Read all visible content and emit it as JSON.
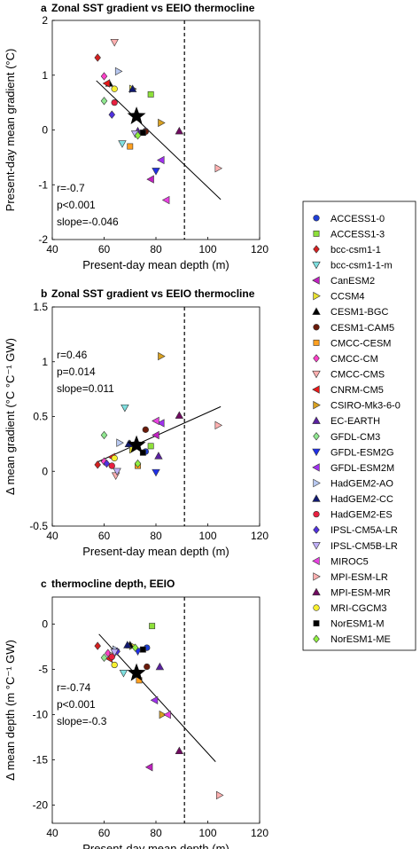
{
  "panels": [
    {
      "letter": "a",
      "title": "Zonal SST gradient vs EEIO thermocline"
    },
    {
      "letter": "b",
      "title": "Zonal SST gradient vs EEIO thermocline"
    },
    {
      "letter": "c",
      "title": "thermocline depth, EEIO"
    }
  ],
  "models": [
    {
      "name": "ACCESS1-0",
      "marker": "circle",
      "color": "#1f3fd6"
    },
    {
      "name": "ACCESS1-3",
      "marker": "square",
      "color": "#8ee03a"
    },
    {
      "name": "bcc-csm1-1",
      "marker": "diamond",
      "color": "#d42020"
    },
    {
      "name": "bcc-csm1-1-m",
      "marker": "tri-down",
      "color": "#7fe0e0"
    },
    {
      "name": "CanESM2",
      "marker": "tri-left",
      "color": "#c020c0"
    },
    {
      "name": "CCSM4",
      "marker": "tri-right",
      "color": "#e8e030"
    },
    {
      "name": "CESM1-BGC",
      "marker": "tri-up",
      "color": "#000000"
    },
    {
      "name": "CESM1-CAM5",
      "marker": "circle",
      "color": "#6a1a0a"
    },
    {
      "name": "CMCC-CESM",
      "marker": "square",
      "color": "#ffa020"
    },
    {
      "name": "CMCC-CM",
      "marker": "diamond",
      "color": "#ff40c8"
    },
    {
      "name": "CMCC-CMS",
      "marker": "tri-down",
      "color": "#ffb0b0"
    },
    {
      "name": "CNRM-CM5",
      "marker": "tri-left",
      "color": "#e81818"
    },
    {
      "name": "CSIRO-Mk3-6-0",
      "marker": "tri-right",
      "color": "#d8a020"
    },
    {
      "name": "EC-EARTH",
      "marker": "tri-up",
      "color": "#5a20a0"
    },
    {
      "name": "GFDL-CM3",
      "marker": "diamond",
      "color": "#90e890"
    },
    {
      "name": "GFDL-ESM2G",
      "marker": "tri-down",
      "color": "#2030e8"
    },
    {
      "name": "GFDL-ESM2M",
      "marker": "tri-left",
      "color": "#a030f0"
    },
    {
      "name": "HadGEM2-AO",
      "marker": "tri-right",
      "color": "#b8c8f0"
    },
    {
      "name": "HadGEM2-CC",
      "marker": "tri-up",
      "color": "#101870"
    },
    {
      "name": "HadGEM2-ES",
      "marker": "circle",
      "color": "#e82040"
    },
    {
      "name": "IPSL-CM5A-LR",
      "marker": "diamond",
      "color": "#5030e0"
    },
    {
      "name": "IPSL-CM5B-LR",
      "marker": "tri-down",
      "color": "#c0b0f8"
    },
    {
      "name": "MIROC5",
      "marker": "tri-left",
      "color": "#e840e0"
    },
    {
      "name": "MPI-ESM-LR",
      "marker": "tri-right",
      "color": "#ffb0b0"
    },
    {
      "name": "MPI-ESM-MR",
      "marker": "tri-up",
      "color": "#700a60"
    },
    {
      "name": "MRI-CGCM3",
      "marker": "circle",
      "color": "#f8f030"
    },
    {
      "name": "NorESM1-M",
      "marker": "square",
      "color": "#000000"
    },
    {
      "name": "NorESM1-ME",
      "marker": "diamond",
      "color": "#90f040"
    }
  ],
  "chart_data": [
    {
      "type": "scatter",
      "title": "Zonal SST gradient vs EEIO thermocline",
      "xlabel": "Present-day mean depth (m)",
      "ylabel": "Present-day mean gradient (°C)",
      "xlim": [
        40,
        120
      ],
      "ylim": [
        -2,
        2
      ],
      "xticks": [
        40,
        60,
        80,
        100,
        120
      ],
      "yticks": [
        -2,
        -1,
        0,
        1,
        2
      ],
      "ytick_labels": [
        "-2",
        "-1",
        "0",
        "1",
        "2"
      ],
      "vline_x": 91,
      "fit": {
        "x": [
          57,
          105
        ],
        "y": [
          0.9,
          -1.27
        ]
      },
      "mean": {
        "x": 72.5,
        "y": 0.25
      },
      "stats": [
        "r=-0.7",
        "p<0.001",
        "slope=-0.046"
      ],
      "points": [
        {
          "model": 0,
          "x": 76,
          "y": -0.02
        },
        {
          "model": 1,
          "x": 78,
          "y": 0.65
        },
        {
          "model": 2,
          "x": 57.5,
          "y": 1.32
        },
        {
          "model": 3,
          "x": 67,
          "y": -0.25
        },
        {
          "model": 4,
          "x": 78,
          "y": -0.9
        },
        {
          "model": 5,
          "x": 71,
          "y": 0.75
        },
        {
          "model": 6,
          "x": 62,
          "y": 0.85
        },
        {
          "model": 7,
          "x": 76,
          "y": -0.03
        },
        {
          "model": 8,
          "x": 70,
          "y": -0.3
        },
        {
          "model": 9,
          "x": 60,
          "y": 0.98
        },
        {
          "model": 10,
          "x": 64,
          "y": 1.6
        },
        {
          "model": 11,
          "x": 61,
          "y": 0.85
        },
        {
          "model": 12,
          "x": 82,
          "y": 0.13
        },
        {
          "model": 13,
          "x": 73,
          "y": -0.02
        },
        {
          "model": 14,
          "x": 60,
          "y": 0.53
        },
        {
          "model": 15,
          "x": 80,
          "y": -0.75
        },
        {
          "model": 16,
          "x": 82,
          "y": -0.55
        },
        {
          "model": 17,
          "x": 65.5,
          "y": 1.07
        },
        {
          "model": 18,
          "x": 71,
          "y": 0.75
        },
        {
          "model": 19,
          "x": 64,
          "y": 0.5
        },
        {
          "model": 20,
          "x": 63,
          "y": 0.28
        },
        {
          "model": 21,
          "x": 72,
          "y": -0.07
        },
        {
          "model": 22,
          "x": 84,
          "y": -1.28
        },
        {
          "model": 23,
          "x": 104,
          "y": -0.7
        },
        {
          "model": 24,
          "x": 89,
          "y": -0.02
        },
        {
          "model": 25,
          "x": 64,
          "y": 0.75
        },
        {
          "model": 26,
          "x": 75,
          "y": -0.05
        },
        {
          "model": 27,
          "x": 73,
          "y": -0.1
        }
      ]
    },
    {
      "type": "scatter",
      "title": "Zonal SST gradient vs EEIO thermocline",
      "xlabel": "Present-day mean depth (m)",
      "ylabel": "Δ mean gradient (°C °C⁻¹ GW)",
      "xlim": [
        40,
        120
      ],
      "ylim": [
        -0.5,
        1.5
      ],
      "xticks": [
        40,
        60,
        80,
        100,
        120
      ],
      "yticks": [
        -0.5,
        0,
        0.5,
        1,
        1.5
      ],
      "ytick_labels": [
        "-0.5",
        "0",
        "0.5",
        "1",
        "1.5"
      ],
      "vline_x": 91,
      "fit": {
        "x": [
          57,
          105
        ],
        "y": [
          0.08,
          0.59
        ]
      },
      "mean": {
        "x": 72.5,
        "y": 0.24
      },
      "stats": [
        "r=0.46",
        "p=0.014",
        "slope=0.011"
      ],
      "points": [
        {
          "model": 0,
          "x": 76,
          "y": 0.18
        },
        {
          "model": 1,
          "x": 78,
          "y": 0.23
        },
        {
          "model": 2,
          "x": 57.5,
          "y": 0.06
        },
        {
          "model": 3,
          "x": 68,
          "y": 0.58
        },
        {
          "model": 4,
          "x": 80,
          "y": 0.33
        },
        {
          "model": 5,
          "x": 71,
          "y": 0.2
        },
        {
          "model": 6,
          "x": 70,
          "y": 0.25
        },
        {
          "model": 7,
          "x": 76,
          "y": 0.38
        },
        {
          "model": 8,
          "x": 73,
          "y": 0.05
        },
        {
          "model": 9,
          "x": 60,
          "y": 0.09
        },
        {
          "model": 10,
          "x": 64.5,
          "y": -0.04
        },
        {
          "model": 11,
          "x": 63,
          "y": 0.13
        },
        {
          "model": 12,
          "x": 82,
          "y": 1.05
        },
        {
          "model": 13,
          "x": 81,
          "y": 0.14
        },
        {
          "model": 14,
          "x": 60,
          "y": 0.33
        },
        {
          "model": 15,
          "x": 80,
          "y": -0.01
        },
        {
          "model": 16,
          "x": 82,
          "y": 0.44
        },
        {
          "model": 17,
          "x": 66,
          "y": 0.26
        },
        {
          "model": 18,
          "x": 69.5,
          "y": 0.25
        },
        {
          "model": 19,
          "x": 63,
          "y": 0.05
        },
        {
          "model": 20,
          "x": 61,
          "y": 0.07
        },
        {
          "model": 21,
          "x": 65,
          "y": 0.0
        },
        {
          "model": 22,
          "x": 80,
          "y": 0.46
        },
        {
          "model": 23,
          "x": 104,
          "y": 0.42
        },
        {
          "model": 24,
          "x": 89,
          "y": 0.51
        },
        {
          "model": 25,
          "x": 64,
          "y": 0.12
        },
        {
          "model": 26,
          "x": 75,
          "y": 0.17
        },
        {
          "model": 27,
          "x": 73,
          "y": 0.07
        }
      ]
    },
    {
      "type": "scatter",
      "title": "thermocline depth, EEIO",
      "xlabel": "Present-day mean depth (m)",
      "ylabel": "Δ mean depth (m °C⁻¹ GW)",
      "xlim": [
        40,
        120
      ],
      "ylim": [
        -22,
        3
      ],
      "xticks": [
        40,
        60,
        80,
        100,
        120
      ],
      "yticks": [
        -20,
        -15,
        -10,
        -5,
        0
      ],
      "ytick_labels": [
        "-20",
        "-15",
        "-10",
        "-5",
        "0"
      ],
      "vline_x": 91,
      "fit": {
        "x": [
          58,
          103
        ],
        "y": [
          -1.1,
          -15.2
        ]
      },
      "mean": {
        "x": 72.5,
        "y": -5.4
      },
      "stats": [
        "r=-0.74",
        "p<0.001",
        "slope=-0.3"
      ],
      "points": [
        {
          "model": 0,
          "x": 76.5,
          "y": -2.6
        },
        {
          "model": 1,
          "x": 78.5,
          "y": -0.2
        },
        {
          "model": 2,
          "x": 57.5,
          "y": -2.4
        },
        {
          "model": 3,
          "x": 67.5,
          "y": -5.4
        },
        {
          "model": 4,
          "x": 77.5,
          "y": -15.8
        },
        {
          "model": 5,
          "x": 71,
          "y": -2.4
        },
        {
          "model": 6,
          "x": 70,
          "y": -2.3
        },
        {
          "model": 7,
          "x": 76.5,
          "y": -4.7
        },
        {
          "model": 8,
          "x": 73.5,
          "y": -6.2
        },
        {
          "model": 9,
          "x": 61.5,
          "y": -3.2
        },
        {
          "model": 10,
          "x": 63.5,
          "y": -3.5
        },
        {
          "model": 11,
          "x": 62,
          "y": -3.8
        },
        {
          "model": 12,
          "x": 82.5,
          "y": -10.0
        },
        {
          "model": 13,
          "x": 81.5,
          "y": -4.7
        },
        {
          "model": 14,
          "x": 60,
          "y": -3.7
        },
        {
          "model": 15,
          "x": 73,
          "y": -3.0
        },
        {
          "model": 16,
          "x": 79.5,
          "y": -8.4
        },
        {
          "model": 17,
          "x": 64.5,
          "y": -2.8
        },
        {
          "model": 18,
          "x": 69,
          "y": -2.3
        },
        {
          "model": 19,
          "x": 63,
          "y": -3.6
        },
        {
          "model": 20,
          "x": 65,
          "y": -3.0
        },
        {
          "model": 21,
          "x": 64,
          "y": -3.1
        },
        {
          "model": 22,
          "x": 84.5,
          "y": -10.0
        },
        {
          "model": 23,
          "x": 104.5,
          "y": -18.9
        },
        {
          "model": 24,
          "x": 89,
          "y": -14.0
        },
        {
          "model": 25,
          "x": 64,
          "y": -4.5
        },
        {
          "model": 26,
          "x": 75,
          "y": -2.8
        },
        {
          "model": 27,
          "x": 72,
          "y": -2.6
        }
      ]
    }
  ]
}
